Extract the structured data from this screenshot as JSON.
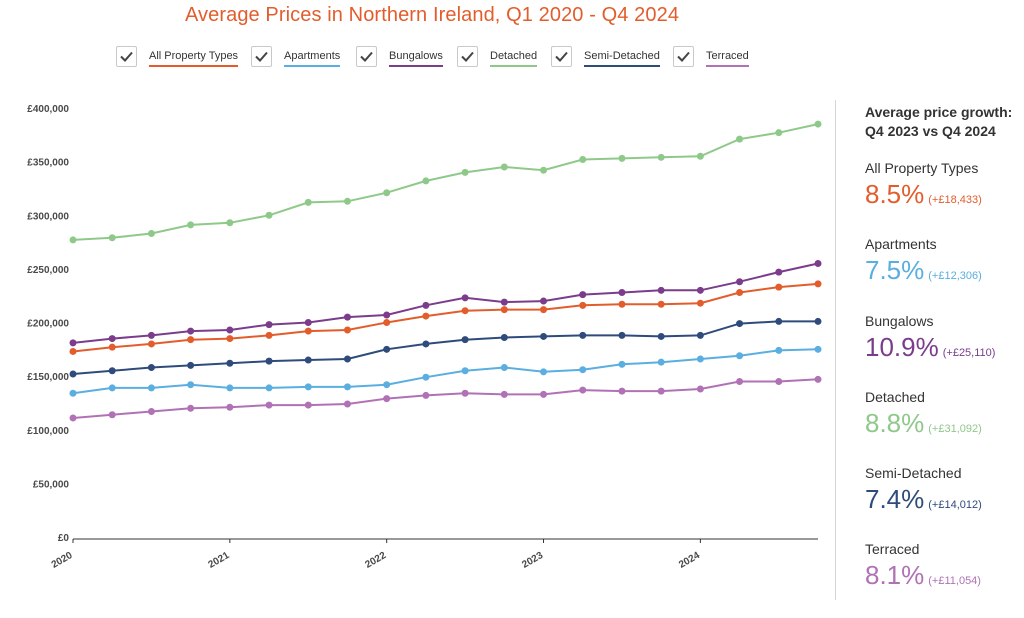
{
  "title": "Average Prices in Northern Ireland, Q1 2020 - Q4 2024",
  "panel": {
    "title_line1": "Average price growth:",
    "title_line2": "Q4 2023 vs Q4 2024",
    "stats": [
      {
        "name": "All Property Types",
        "pct": "8.5%",
        "abs": "(+£18,433)",
        "color": "#e35d2c"
      },
      {
        "name": "Apartments",
        "pct": "7.5%",
        "abs": "(+£12,306)",
        "color": "#5aaee0"
      },
      {
        "name": "Bungalows",
        "pct": "10.9%",
        "abs": "(+£25,110)",
        "color": "#7b3c8c"
      },
      {
        "name": "Detached",
        "pct": "8.8%",
        "abs": "(+£31,092)",
        "color": "#8fc98a"
      },
      {
        "name": "Semi-Detached",
        "pct": "7.4%",
        "abs": "(+£14,012)",
        "color": "#2f4b7c"
      },
      {
        "name": "Terraced",
        "pct": "8.1%",
        "abs": "(+£11,054)",
        "color": "#b072b5"
      }
    ]
  },
  "chart_data": {
    "type": "line",
    "title": "Average Prices in Northern Ireland, Q1 2020 - Q4 2024",
    "x": [
      "Q1 2020",
      "Q2 2020",
      "Q3 2020",
      "Q4 2020",
      "Q1 2021",
      "Q2 2021",
      "Q3 2021",
      "Q4 2021",
      "Q1 2022",
      "Q2 2022",
      "Q3 2022",
      "Q4 2022",
      "Q1 2023",
      "Q2 2023",
      "Q3 2023",
      "Q4 2023",
      "Q1 2024",
      "Q2 2024",
      "Q3 2024",
      "Q4 2024"
    ],
    "x_tick_labels": [
      "2020",
      "2021",
      "2022",
      "2023",
      "2024"
    ],
    "y_tick_labels": [
      "£0",
      "£50,000",
      "£100,000",
      "£150,000",
      "£200,000",
      "£250,000",
      "£300,000",
      "£350,000",
      "£400,000"
    ],
    "ylim": [
      0,
      400000
    ],
    "legend_position": "top",
    "grid": false,
    "series": [
      {
        "name": "All Property Types",
        "color": "#e35d2c",
        "values": [
          173000,
          177000,
          180000,
          184000,
          185000,
          188000,
          192000,
          193000,
          200000,
          206000,
          211000,
          212000,
          212000,
          216000,
          217000,
          217000,
          218000,
          228000,
          233000,
          236000
        ]
      },
      {
        "name": "Apartments",
        "color": "#5aaee0",
        "values": [
          134000,
          139000,
          139000,
          142000,
          139000,
          139000,
          140000,
          140000,
          142000,
          149000,
          155000,
          158000,
          154000,
          156000,
          161000,
          163000,
          166000,
          169000,
          174000,
          175000
        ]
      },
      {
        "name": "Bungalows",
        "color": "#7b3c8c",
        "values": [
          181000,
          185000,
          188000,
          192000,
          193000,
          198000,
          200000,
          205000,
          207000,
          216000,
          223000,
          219000,
          220000,
          226000,
          228000,
          230000,
          230000,
          238000,
          247000,
          255000
        ]
      },
      {
        "name": "Detached",
        "color": "#8fc98a",
        "values": [
          277000,
          279000,
          283000,
          291000,
          293000,
          300000,
          312000,
          313000,
          321000,
          332000,
          340000,
          345000,
          342000,
          352000,
          353000,
          354000,
          355000,
          371000,
          377000,
          385000
        ]
      },
      {
        "name": "Semi-Detached",
        "color": "#2f4b7c",
        "values": [
          152000,
          155000,
          158000,
          160000,
          162000,
          164000,
          165000,
          166000,
          175000,
          180000,
          184000,
          186000,
          187000,
          188000,
          188000,
          187000,
          188000,
          199000,
          201000,
          201000
        ]
      },
      {
        "name": "Terraced",
        "color": "#b072b5",
        "values": [
          111000,
          114000,
          117000,
          120000,
          121000,
          123000,
          123000,
          124000,
          129000,
          132000,
          134000,
          133000,
          133000,
          137000,
          136000,
          136000,
          138000,
          145000,
          145000,
          147000
        ]
      }
    ]
  }
}
